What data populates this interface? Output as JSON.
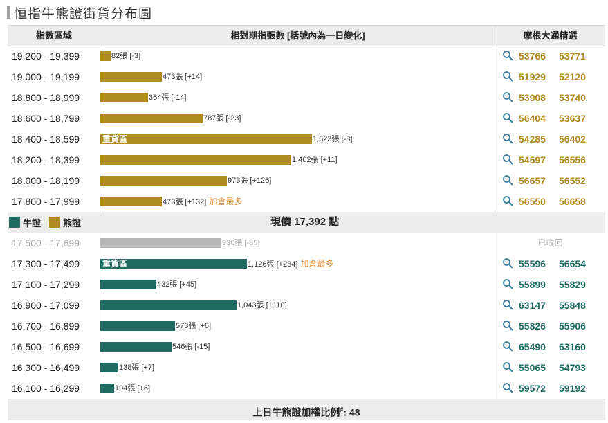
{
  "page_title": "恒指牛熊證街貨分布圖",
  "header": {
    "col_index": "指數區域",
    "col_qty": "相對期指張數 [括號內為一日變化]",
    "col_pick": "摩根大通精選"
  },
  "colors": {
    "bear": "#ae8a1f",
    "bull": "#1f6b62",
    "recalled": "#b7b7b7",
    "accent": "#e8913a"
  },
  "legend": {
    "bull": "牛證",
    "bear": "熊證"
  },
  "current_price": {
    "prefix": "現價 ",
    "value": "17,392",
    "suffix": " 點"
  },
  "footer": {
    "text": "上日牛熊證加權比例",
    "mark": "#",
    "value": ": 48"
  },
  "chart_data": {
    "type": "bar",
    "orientation": "horizontal",
    "title": "恒指牛熊證街貨分布圖",
    "unit": "張",
    "bear_rows": [
      {
        "range": "19,200 - 19,399",
        "value": 82,
        "label": "82張 [-3]",
        "change": -3,
        "codes": [
          "53766",
          "53771"
        ]
      },
      {
        "range": "19,000 - 19,199",
        "value": 473,
        "label": "473張 [+14]",
        "change": 14,
        "codes": [
          "51929",
          "52120"
        ]
      },
      {
        "range": "18,800 - 18,999",
        "value": 364,
        "label": "364張 [-14]",
        "change": -14,
        "codes": [
          "53908",
          "53740"
        ]
      },
      {
        "range": "18,600 - 18,799",
        "value": 787,
        "label": "787張 [-23]",
        "change": -23,
        "codes": [
          "56404",
          "53637"
        ]
      },
      {
        "range": "18,400 - 18,599",
        "value": 1623,
        "label": "1,623張 [-8]",
        "change": -8,
        "zone": "重貨區",
        "codes": [
          "54285",
          "56402"
        ]
      },
      {
        "range": "18,200 - 18,399",
        "value": 1462,
        "label": "1,462張 [+11]",
        "change": 11,
        "codes": [
          "54597",
          "56556"
        ]
      },
      {
        "range": "18,000 - 18,199",
        "value": 973,
        "label": "973張 [+126]",
        "change": 126,
        "codes": [
          "56657",
          "56552"
        ]
      },
      {
        "range": "17,800 - 17,999",
        "value": 473,
        "label": "473張 [+132]",
        "change": 132,
        "add_tag": "加倉最多",
        "codes": [
          "56550",
          "56658"
        ]
      }
    ],
    "bull_rows": [
      {
        "range": "17,500 - 17,699",
        "value": 930,
        "label": "930張 [-85]",
        "change": -85,
        "recalled": true,
        "recalled_text": "已收回"
      },
      {
        "range": "17,300 - 17,499",
        "value": 1126,
        "label": "1,126張 [+234]",
        "change": 234,
        "zone": "重貨區",
        "add_tag": "加倉最多",
        "codes": [
          "55596",
          "56654"
        ]
      },
      {
        "range": "17,100 - 17,299",
        "value": 432,
        "label": "432張 [+45]",
        "change": 45,
        "codes": [
          "55899",
          "55829"
        ]
      },
      {
        "range": "16,900 - 17,099",
        "value": 1043,
        "label": "1,043張 [+110]",
        "change": 110,
        "codes": [
          "63147",
          "55848"
        ]
      },
      {
        "range": "16,700 - 16,899",
        "value": 573,
        "label": "573張 [+6]",
        "change": 6,
        "codes": [
          "55826",
          "55906"
        ]
      },
      {
        "range": "16,500 - 16,699",
        "value": 546,
        "label": "546張 [-15]",
        "change": -15,
        "codes": [
          "65490",
          "63160"
        ]
      },
      {
        "range": "16,300 - 16,499",
        "value": 138,
        "label": "138張 [+7]",
        "change": 7,
        "codes": [
          "55065",
          "54793"
        ]
      },
      {
        "range": "16,100 - 16,299",
        "value": 104,
        "label": "104張 [+6]",
        "change": 6,
        "codes": [
          "59572",
          "59192"
        ]
      }
    ]
  }
}
